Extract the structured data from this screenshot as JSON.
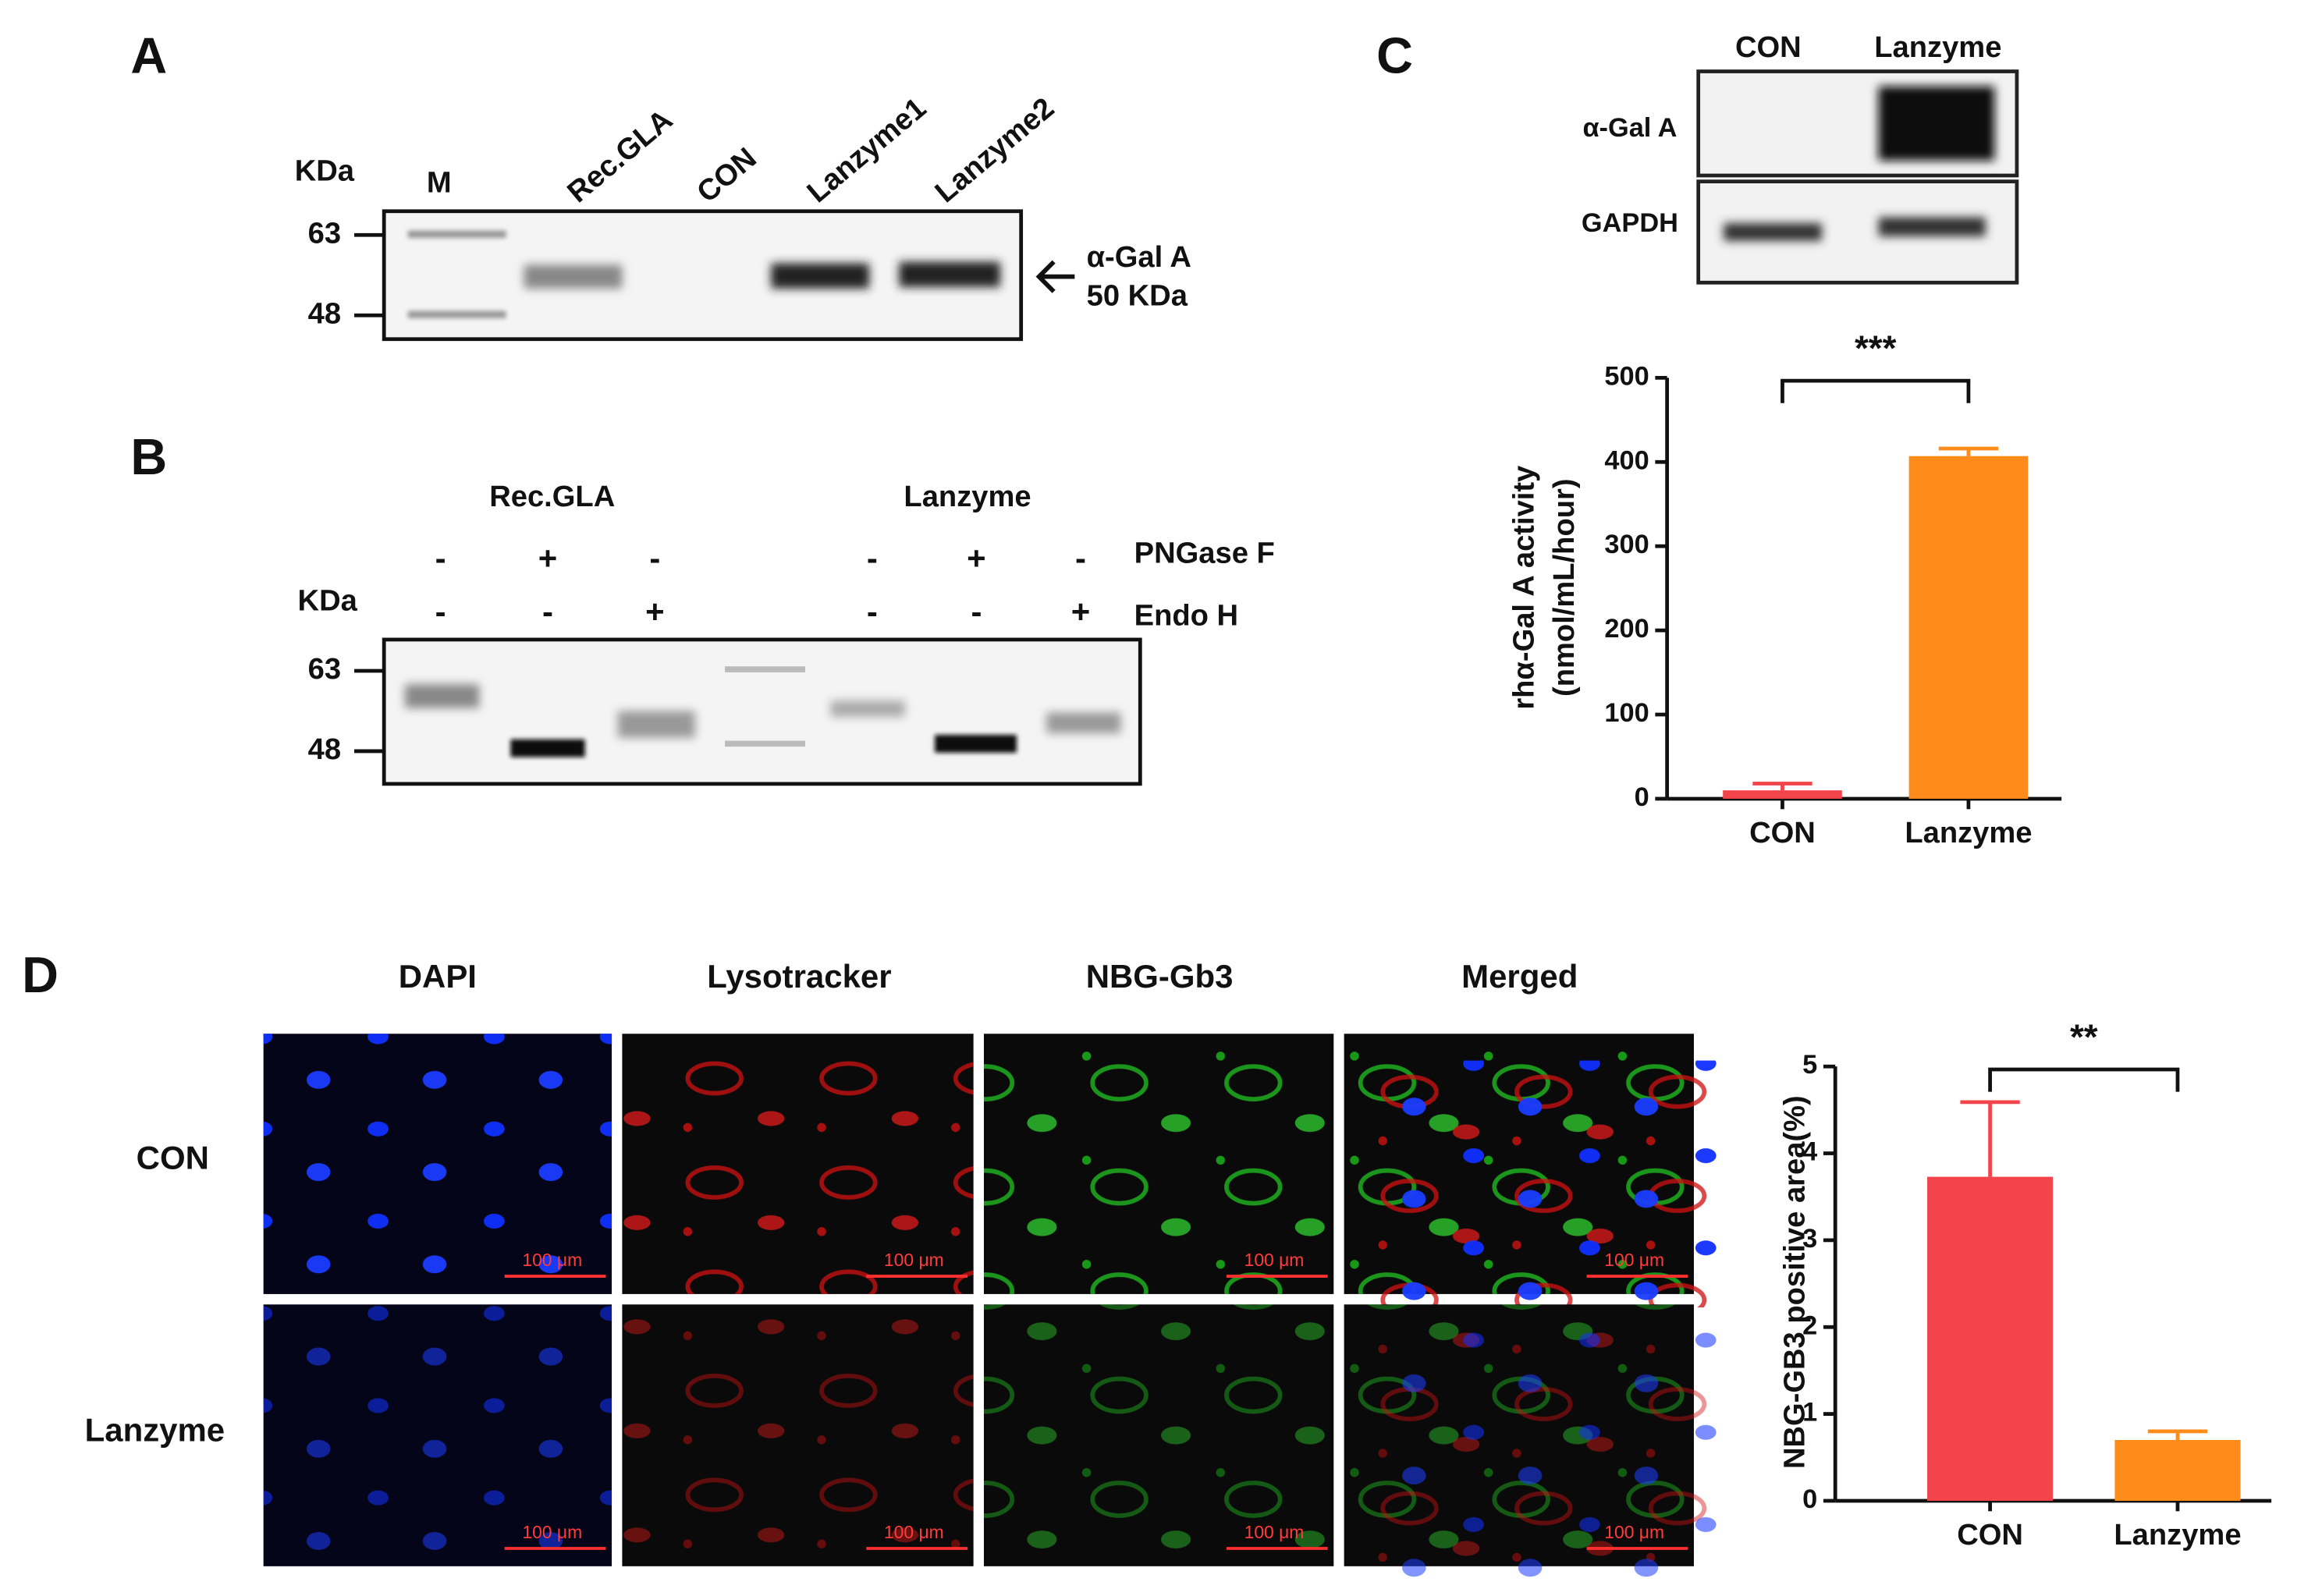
{
  "panel_a": {
    "letter": "A",
    "unit": "KDa",
    "lanes": [
      "M",
      "Rec.GLA",
      "CON",
      "Lanzyme1",
      "Lanzyme2"
    ],
    "markers": [
      "63",
      "48"
    ],
    "target": "α-Gal A",
    "size": "50 KDa"
  },
  "panel_b": {
    "letter": "B",
    "groups": [
      "Rec.GLA",
      "Lanzyme"
    ],
    "unit": "KDa",
    "markers": [
      "63",
      "48"
    ],
    "pngase_label": "PNGase F",
    "pngase": [
      "-",
      "+",
      "-",
      "-",
      "+",
      "-"
    ],
    "endo_label": "Endo H",
    "endo": [
      "-",
      "-",
      "+",
      "-",
      "-",
      "+"
    ]
  },
  "panel_c": {
    "letter": "C",
    "lanes": [
      "CON",
      "Lanzyme"
    ],
    "rows": [
      "α-Gal A",
      "GAPDH"
    ]
  },
  "panel_d": {
    "letter": "D",
    "columns": [
      "DAPI",
      "Lysotracker",
      "NBG-Gb3",
      "Merged"
    ],
    "rows": [
      "CON",
      "Lanzyme"
    ],
    "scale_bar": "100 μm"
  },
  "chart_data": [
    {
      "type": "bar",
      "ylabel": [
        "rhα-Gal A activity",
        "(nmol/mL/hour)"
      ],
      "categories": [
        "CON",
        "Lanzyme"
      ],
      "values": [
        10,
        407
      ],
      "errors": [
        8,
        9
      ],
      "colors": [
        "#f2444a",
        "#ff8c1a"
      ],
      "ylim": [
        0,
        500
      ],
      "yticks": [
        0,
        100,
        200,
        300,
        400,
        500
      ],
      "significance": "***"
    },
    {
      "type": "bar",
      "ylabel": [
        "NBG-GB3 positive area(%)"
      ],
      "categories": [
        "CON",
        "Lanzyme"
      ],
      "values": [
        3.73,
        0.7
      ],
      "errors": [
        0.86,
        0.1
      ],
      "colors": [
        "#f2444a",
        "#ff8c1a"
      ],
      "ylim": [
        0,
        5
      ],
      "yticks": [
        0,
        1,
        2,
        3,
        4,
        5
      ],
      "significance": "**"
    }
  ]
}
